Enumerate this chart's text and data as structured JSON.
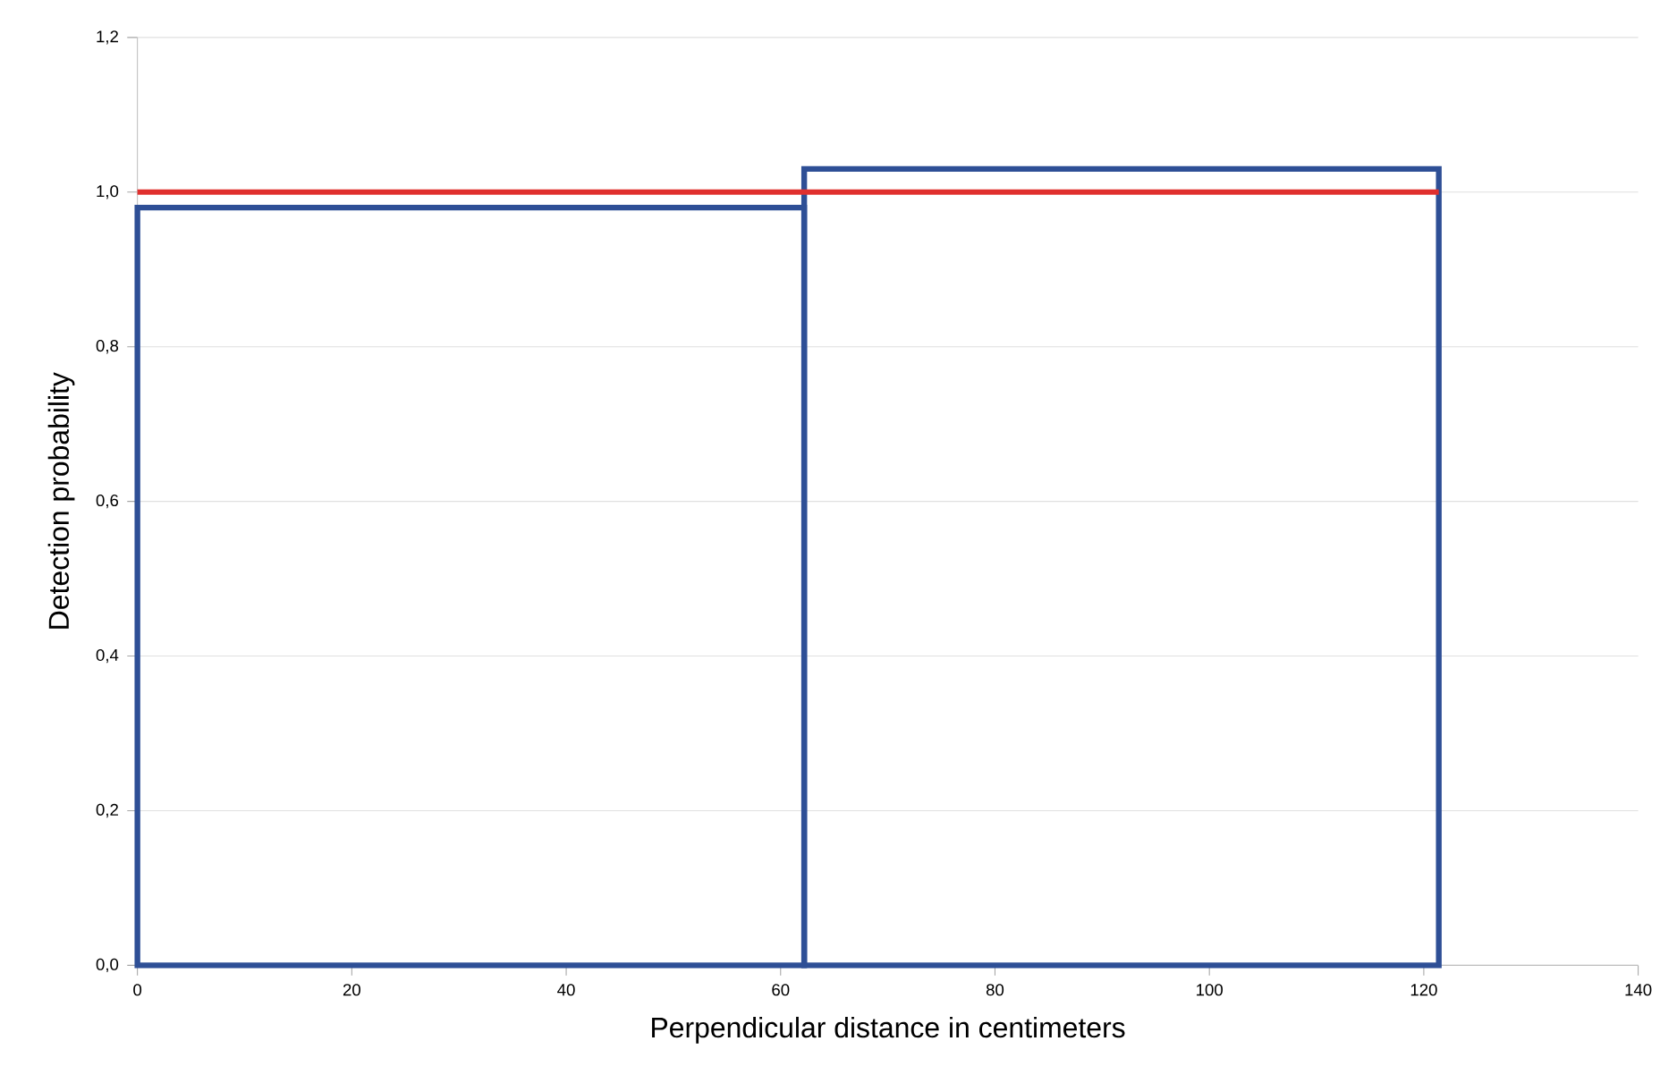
{
  "chart_data": {
    "type": "histogram",
    "xlabel": "Perpendicular distance in centimeters",
    "ylabel": "Detection probability",
    "series": [
      {
        "bins": [
          0,
          62.2,
          121.4
        ],
        "values": [
          0.98,
          1.03
        ],
        "color": "#2e4f96"
      },
      {
        "type": "line",
        "x": [
          0,
          121.4
        ],
        "values": [
          1.0,
          1.0
        ],
        "color": "#e0302e"
      }
    ],
    "xlim": [
      0,
      140
    ],
    "xticks": [
      0,
      20,
      40,
      60,
      80,
      100,
      120,
      140
    ],
    "ylim": [
      0,
      1.2
    ],
    "yticks": [
      {
        "value": 0,
        "label": "0,0"
      },
      {
        "value": 0.2,
        "label": "0,2"
      },
      {
        "value": 0.4,
        "label": "0,4"
      },
      {
        "value": 0.6,
        "label": "0,6"
      },
      {
        "value": 0.8,
        "label": "0,8"
      },
      {
        "value": 1.0,
        "label": "1,0"
      },
      {
        "value": 1.2,
        "label": "1,2"
      }
    ],
    "grid": "y"
  }
}
